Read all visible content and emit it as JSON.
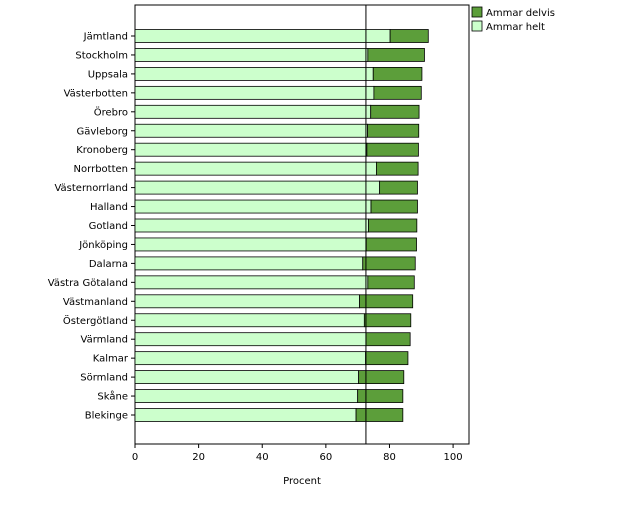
{
  "chart_data": {
    "type": "bar",
    "orientation": "horizontal",
    "stacked": true,
    "xlabel": "Procent",
    "xlim": [
      0,
      105
    ],
    "xticks": [
      0,
      20,
      40,
      60,
      80,
      100
    ],
    "reference_line": 72.6,
    "categories": [
      "Jämtland",
      "Stockholm",
      "Uppsala",
      "Västerbotten",
      "Örebro",
      "Gävleborg",
      "Kronoberg",
      "Norrbotten",
      "Västernorrland",
      "Halland",
      "Gotland",
      "Jönköping",
      "Dalarna",
      "Västra Götaland",
      "Västmanland",
      "Östergötland",
      "Värmland",
      "Kalmar",
      "Sörmland",
      "Skåne",
      "Blekinge"
    ],
    "series": [
      {
        "name": "Ammar helt",
        "color": "#ccffcc",
        "values": [
          80.2,
          73.2,
          74.9,
          75.1,
          74.1,
          73.1,
          72.9,
          75.9,
          76.9,
          74.2,
          73.4,
          72.7,
          71.6,
          73.2,
          70.6,
          72.1,
          72.6,
          72.5,
          70.3,
          70.0,
          69.5
        ]
      },
      {
        "name": "Ammar delvis",
        "color": "#5c9e3a",
        "values": [
          12.0,
          17.8,
          15.3,
          14.9,
          15.2,
          16.1,
          16.2,
          13.1,
          11.9,
          14.6,
          15.2,
          15.8,
          16.5,
          14.6,
          16.7,
          14.6,
          13.9,
          13.3,
          14.2,
          14.2,
          14.7
        ]
      }
    ],
    "legend": {
      "placement": "top-right",
      "entries": [
        "Ammar delvis",
        "Ammar helt"
      ]
    }
  }
}
